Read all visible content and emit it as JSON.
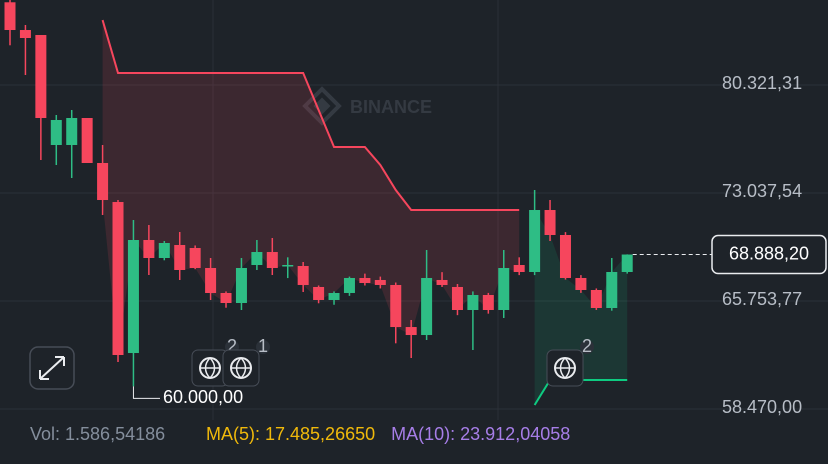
{
  "chart_data": {
    "type": "candlestick",
    "watermark": "BINANCE",
    "ylim": [
      54761,
      86054
    ],
    "yticks": [
      {
        "value": 80321.31,
        "label": "80.321,31"
      },
      {
        "value": 73037.54,
        "label": "73.037,54"
      },
      {
        "value": 65753.77,
        "label": "65.753,77"
      },
      {
        "value": 58470.0,
        "label": "58.470,00"
      }
    ],
    "grid": true,
    "up_color": "#2ebd85",
    "down_color": "#f6465d",
    "open": [
      85900,
      84030,
      83693,
      76275,
      76275,
      78096,
      75061,
      72430,
      62246,
      69868,
      68654,
      69531,
      69328,
      67980,
      66294,
      65619,
      68182,
      69058,
      68100,
      68114,
      66699,
      65822,
      66294,
      67306,
      67171,
      66834,
      63999,
      63460,
      67171,
      66699,
      65147,
      66159,
      65147,
      68182,
      67710,
      71891,
      70205,
      67306,
      66496,
      65282,
      67710
    ],
    "high": [
      86054,
      84368,
      83693,
      78298,
      78635,
      78096,
      76275,
      72565,
      71217,
      70879,
      69800,
      70407,
      69500,
      68654,
      66400,
      68654,
      69868,
      70003,
      68700,
      68384,
      66800,
      66400,
      67400,
      67600,
      67400,
      67000,
      64472,
      69193,
      67700,
      66900,
      66400,
      66300,
      69193,
      68700,
      73240,
      72565,
      70400,
      67500,
      66600,
      68654,
      68900
    ],
    "low": [
      82999,
      80996,
      75264,
      74926,
      74050,
      75061,
      71554,
      61639,
      60000,
      67508,
      68500,
      67171,
      67900,
      65822,
      65300,
      65147,
      67845,
      67508,
      67300,
      66362,
      65600,
      65500,
      66100,
      66800,
      66600,
      62900,
      61909,
      63123,
      66700,
      64800,
      62449,
      64900,
      64607,
      67500,
      67500,
      69800,
      67200,
      66300,
      65150,
      65100,
      67600
    ],
    "close": [
      84030,
      83491,
      78096,
      77961,
      78096,
      75061,
      72565,
      62112,
      69868,
      68654,
      69666,
      67845,
      67980,
      66294,
      65619,
      67980,
      69058,
      67980,
      68182,
      66834,
      65822,
      66294,
      67306,
      66968,
      66834,
      63999,
      63460,
      67306,
      66834,
      65147,
      66159,
      65147,
      67980,
      67710,
      71891,
      70205,
      67306,
      66496,
      65282,
      67710,
      68888.2
    ],
    "upper_trend": [
      null,
      null,
      null,
      null,
      null,
      null,
      84700,
      81130,
      81130,
      81130,
      81130,
      81130,
      81130,
      81130,
      81130,
      81130,
      81130,
      81130,
      81130,
      81130,
      78635,
      76140,
      76140,
      76140,
      74926,
      73240,
      71891,
      71891,
      71891,
      71891,
      71891,
      71891,
      71891,
      71891,
      null,
      null,
      null,
      null,
      null,
      null,
      null
    ],
    "upper_trend_color": "#f6465d",
    "lower_trend": [
      null,
      null,
      null,
      null,
      null,
      null,
      null,
      null,
      null,
      null,
      null,
      null,
      null,
      null,
      null,
      null,
      null,
      null,
      null,
      null,
      null,
      null,
      null,
      null,
      null,
      null,
      null,
      null,
      null,
      null,
      null,
      null,
      null,
      null,
      58740,
      60426,
      60426,
      60426,
      60426,
      60426,
      60426
    ],
    "lower_trend_color": "#0ecb81",
    "current_price": {
      "value": 68888.2,
      "label": "68.888,20"
    },
    "low_marker": {
      "value": 60000,
      "label": "60.000,00"
    },
    "event_badges": [
      "2",
      "1",
      "2"
    ],
    "volume_label": "Vol: 1.586,54186",
    "ma_labels": [
      {
        "text": "MA(5): 17.485,26650",
        "color": "#f0b90b"
      },
      {
        "text": "MA(10): 23.912,04058",
        "color": "#a77ee8"
      }
    ]
  }
}
